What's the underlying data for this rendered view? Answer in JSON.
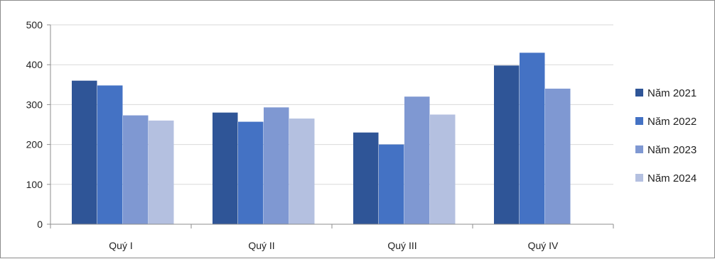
{
  "chart_data": {
    "type": "bar",
    "categories": [
      "Quý I",
      "Quý II",
      "Quý III",
      "Quý IV"
    ],
    "series": [
      {
        "name": "Năm 2021",
        "color": "#2f5597",
        "values": [
          360,
          280,
          230,
          398
        ]
      },
      {
        "name": "Năm 2022",
        "color": "#4472c4",
        "values": [
          348,
          257,
          200,
          430
        ]
      },
      {
        "name": "Năm 2023",
        "color": "#7f98d2",
        "values": [
          273,
          293,
          320,
          340
        ]
      },
      {
        "name": "Năm 2024",
        "color": "#b4c0e0",
        "values": [
          260,
          265,
          275,
          null
        ]
      }
    ],
    "ylim": [
      0,
      500
    ],
    "yticks": [
      0,
      100,
      200,
      300,
      400,
      500
    ],
    "grid": true,
    "legend_position": "right"
  }
}
